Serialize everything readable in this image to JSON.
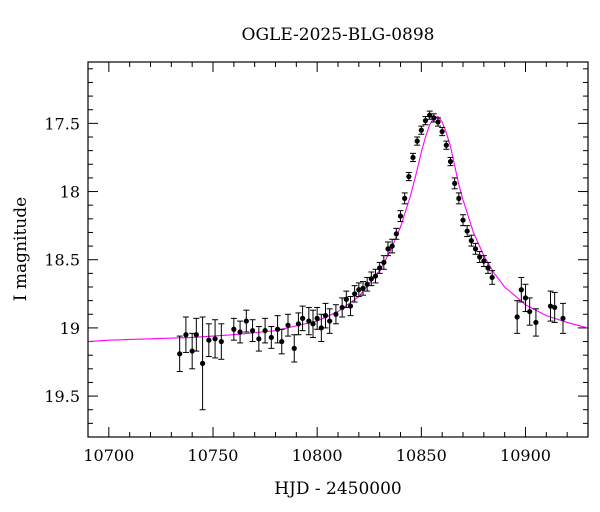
{
  "chart_data": {
    "type": "scatter",
    "title": "OGLE-2025-BLG-0898",
    "xlabel": "HJD - 2450000",
    "ylabel": "I magnitude",
    "xlim": [
      10690,
      10930
    ],
    "ylim": [
      19.8,
      17.05
    ],
    "y_inverted": true,
    "xticks": [
      10700,
      10750,
      10800,
      10850,
      10900
    ],
    "yticks": [
      17.5,
      18,
      18.5,
      19,
      19.5
    ],
    "grid": false,
    "colors": {
      "model": "#ff00ff",
      "points": "#000000",
      "axes": "#000000"
    },
    "model": {
      "name": "",
      "x": [
        10690,
        10700,
        10720,
        10740,
        10760,
        10780,
        10800,
        10810,
        10820,
        10830,
        10835,
        10840,
        10845,
        10848,
        10850,
        10852,
        10854,
        10856,
        10858,
        10860,
        10862,
        10864,
        10866,
        10868,
        10870,
        10875,
        10880,
        10885,
        10890,
        10900,
        10910,
        10920,
        10930
      ],
      "y": [
        19.1,
        19.09,
        19.08,
        19.07,
        19.05,
        19.02,
        18.95,
        18.88,
        18.77,
        18.58,
        18.44,
        18.26,
        18.02,
        17.84,
        17.71,
        17.6,
        17.51,
        17.46,
        17.45,
        17.49,
        17.57,
        17.67,
        17.81,
        17.95,
        18.06,
        18.3,
        18.47,
        18.6,
        18.7,
        18.83,
        18.91,
        18.96,
        19.0
      ]
    },
    "series": [
      {
        "x": [
          10734,
          10737,
          10740,
          10742,
          10745,
          10748,
          10751,
          10754,
          10760,
          10763,
          10766,
          10769,
          10772,
          10775,
          10778,
          10781,
          10783,
          10786,
          10789,
          10791,
          10793,
          10796,
          10798,
          10800,
          10802,
          10804,
          10806,
          10809,
          10812,
          10814,
          10816,
          10818,
          10820,
          10822,
          10824,
          10826,
          10828,
          10830,
          10832,
          10834,
          10836,
          10838,
          10840,
          10842,
          10844,
          10846,
          10848,
          10850,
          10852,
          10854,
          10856,
          10858,
          10860,
          10862,
          10864,
          10866,
          10868,
          10870,
          10872,
          10874,
          10876,
          10878,
          10880,
          10882,
          10884,
          10896,
          10898,
          10900,
          10902,
          10905,
          10912,
          10914,
          10918
        ],
        "y": [
          19.19,
          19.05,
          19.17,
          19.05,
          19.26,
          19.09,
          19.08,
          19.1,
          19.01,
          19.03,
          18.95,
          19.02,
          19.08,
          19.02,
          19.07,
          19.01,
          19.1,
          18.98,
          19.15,
          18.97,
          18.93,
          18.95,
          18.97,
          18.93,
          19.0,
          18.91,
          18.95,
          18.9,
          18.85,
          18.79,
          18.84,
          18.75,
          18.72,
          18.71,
          18.68,
          18.64,
          18.62,
          18.56,
          18.52,
          18.42,
          18.4,
          18.31,
          18.18,
          18.05,
          17.89,
          17.75,
          17.63,
          17.55,
          17.48,
          17.44,
          17.46,
          17.49,
          17.56,
          17.66,
          17.78,
          17.94,
          18.05,
          18.21,
          18.29,
          18.36,
          18.42,
          18.48,
          18.51,
          18.56,
          18.63,
          18.92,
          18.72,
          18.78,
          18.88,
          18.96,
          18.84,
          18.85,
          18.93
        ],
        "err": [
          0.13,
          0.13,
          0.13,
          0.12,
          0.34,
          0.12,
          0.14,
          0.13,
          0.08,
          0.08,
          0.08,
          0.08,
          0.09,
          0.09,
          0.08,
          0.1,
          0.09,
          0.08,
          0.1,
          0.08,
          0.09,
          0.1,
          0.1,
          0.08,
          0.1,
          0.09,
          0.09,
          0.07,
          0.07,
          0.06,
          0.07,
          0.06,
          0.05,
          0.05,
          0.05,
          0.05,
          0.05,
          0.04,
          0.05,
          0.05,
          0.05,
          0.04,
          0.04,
          0.04,
          0.03,
          0.03,
          0.03,
          0.03,
          0.03,
          0.03,
          0.03,
          0.03,
          0.03,
          0.03,
          0.03,
          0.04,
          0.04,
          0.04,
          0.04,
          0.04,
          0.04,
          0.04,
          0.04,
          0.04,
          0.05,
          0.12,
          0.09,
          0.1,
          0.1,
          0.1,
          0.11,
          0.11,
          0.11
        ]
      }
    ]
  }
}
